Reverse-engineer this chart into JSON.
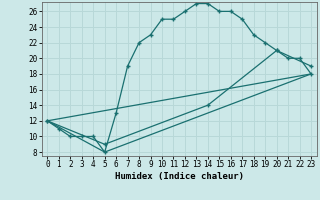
{
  "title": "",
  "xlabel": "Humidex (Indice chaleur)",
  "ylabel": "",
  "bg_color": "#cce8e8",
  "grid_color": "#b8d8d8",
  "line_color": "#1a7070",
  "xlim": [
    -0.5,
    23.5
  ],
  "ylim": [
    7.5,
    27.2
  ],
  "xticks": [
    0,
    1,
    2,
    3,
    4,
    5,
    6,
    7,
    8,
    9,
    10,
    11,
    12,
    13,
    14,
    15,
    16,
    17,
    18,
    19,
    20,
    21,
    22,
    23
  ],
  "yticks": [
    8,
    10,
    12,
    14,
    16,
    18,
    20,
    22,
    24,
    26
  ],
  "line1_x": [
    0,
    1,
    2,
    3,
    4,
    5,
    6,
    7,
    8,
    9,
    10,
    11,
    12,
    13,
    14,
    15,
    16,
    17,
    18,
    19,
    20,
    21,
    22,
    23
  ],
  "line1_y": [
    12,
    11,
    10,
    10,
    10,
    8,
    13,
    19,
    22,
    23,
    25,
    25,
    26,
    27,
    27,
    26,
    26,
    25,
    23,
    22,
    21,
    20,
    20,
    18
  ],
  "line2_x": [
    0,
    5,
    23
  ],
  "line2_y": [
    12,
    8,
    18
  ],
  "line3_x": [
    0,
    23
  ],
  "line3_y": [
    12,
    18
  ],
  "line4_x": [
    0,
    5,
    14,
    20,
    23
  ],
  "line4_y": [
    12,
    9,
    14,
    21,
    19
  ]
}
